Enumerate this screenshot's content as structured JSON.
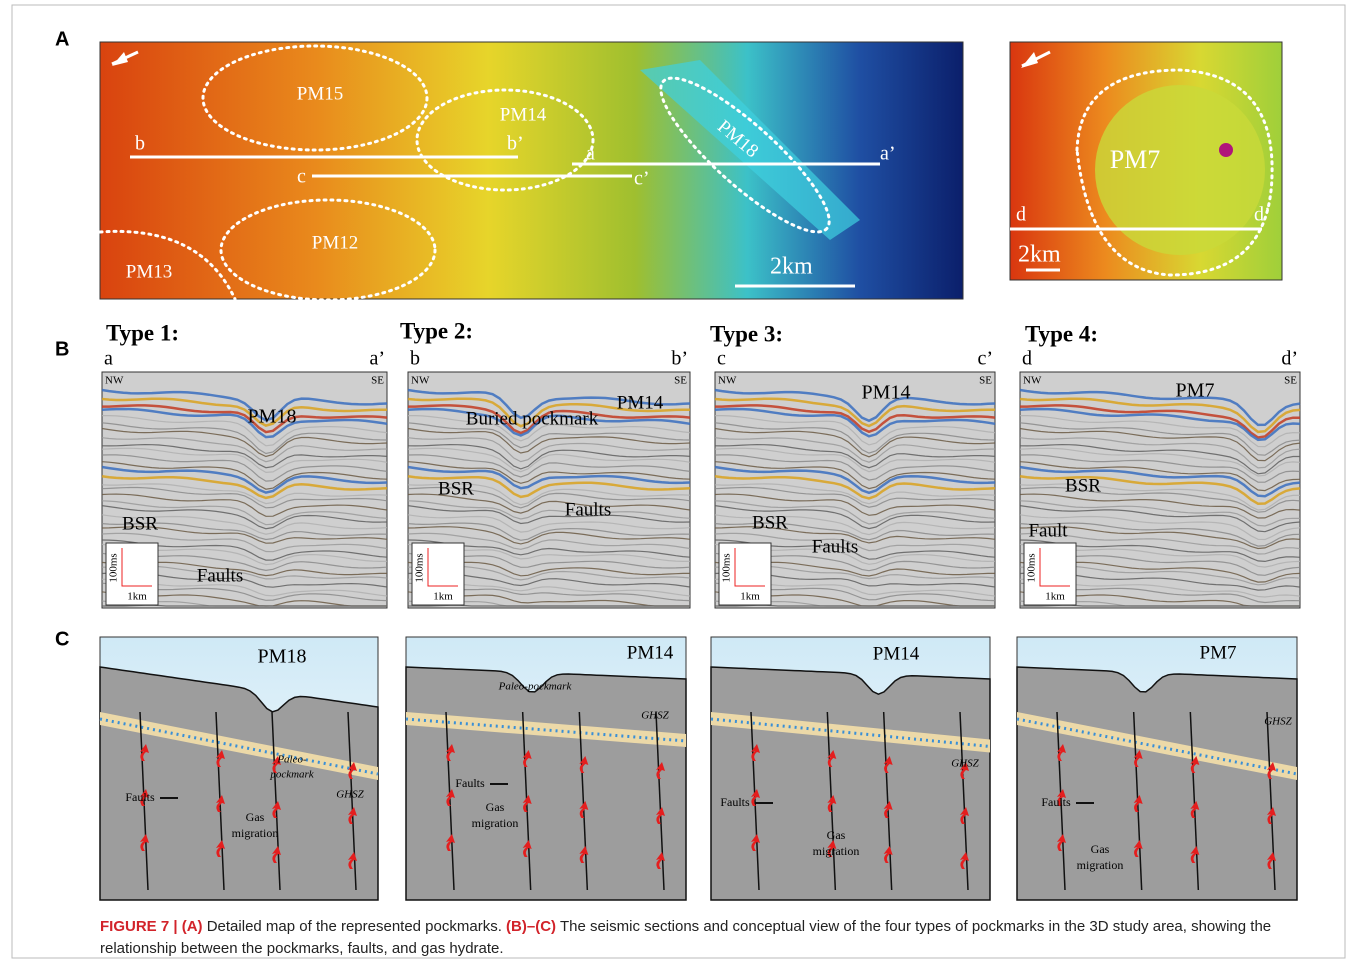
{
  "panels": [
    "A",
    "B",
    "C"
  ],
  "map_main": {
    "pockmarks": [
      "PM15",
      "PM14",
      "PM18",
      "PM12",
      "PM13"
    ],
    "profile_ends": [
      "b",
      "b’",
      "a",
      "a’",
      "c",
      "c’"
    ],
    "scale": "2km"
  },
  "map_inset": {
    "pockmark": "PM7",
    "profile_ends": [
      "d",
      "d’"
    ],
    "scale": "2km"
  },
  "sections": [
    {
      "title": "Type 1:",
      "start": "a",
      "end": "a’",
      "left_dir": "NW",
      "right_dir": "SE",
      "labels": [
        "PM18",
        "BSR",
        "Faults"
      ],
      "scale_v": "100ms",
      "scale_h": "1km"
    },
    {
      "title": "Type 2:",
      "start": "b",
      "end": "b’",
      "left_dir": "NW",
      "right_dir": "SE",
      "labels": [
        "PM14",
        "Buried pockmark",
        "BSR",
        "Faults"
      ],
      "scale_v": "100ms",
      "scale_h": "1km"
    },
    {
      "title": "Type 3:",
      "start": "c",
      "end": "c’",
      "left_dir": "NW",
      "right_dir": "SE",
      "labels": [
        "PM14",
        "BSR",
        "Faults"
      ],
      "scale_v": "100ms",
      "scale_h": "1km"
    },
    {
      "title": "Type 4:",
      "start": "d",
      "end": "d’",
      "left_dir": "NW",
      "right_dir": "SE",
      "labels": [
        "PM7",
        "BSR",
        "Fault"
      ],
      "scale_v": "100ms",
      "scale_h": "1km"
    }
  ],
  "models": [
    {
      "labels": [
        [
          "PM18"
        ],
        [
          "Paleo-",
          "pockmark"
        ],
        [
          "Faults"
        ],
        [
          "Gas",
          "migration"
        ],
        [
          "GHSZ"
        ]
      ]
    },
    {
      "labels": [
        [
          "PM14"
        ],
        [
          "Paleo-pockmark"
        ],
        [
          "Faults"
        ],
        [
          "Gas",
          "migration"
        ],
        [
          "GHSZ"
        ]
      ]
    },
    {
      "labels": [
        [
          "PM14"
        ],
        [
          "Faults"
        ],
        [
          "Gas",
          "migration"
        ],
        [
          "GHSZ"
        ]
      ]
    },
    {
      "labels": [
        [
          "PM7"
        ],
        [
          "GHSZ"
        ],
        [
          "Faults"
        ],
        [
          "Gas",
          "migration"
        ]
      ]
    }
  ],
  "caption": {
    "figure": "FIGURE 7 | (A)",
    "part_a": " Detailed map of the represented pockmarks. ",
    "range": "(B)–(C)",
    "part_bc": " The seismic sections and conceptual view of the four types of pockmarks in the 3D study area, showing the relationship between the pockmarks, faults, and gas hydrate."
  }
}
